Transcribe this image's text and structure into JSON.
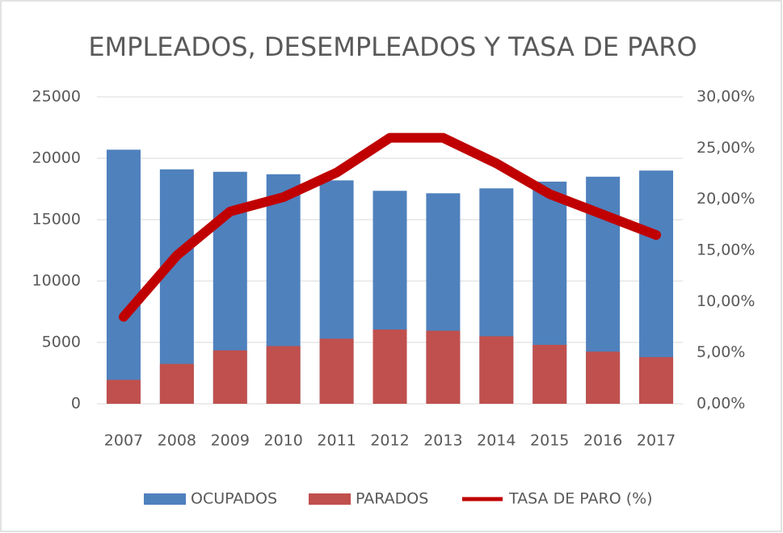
{
  "chart_data": {
    "type": "bar",
    "title": "EMPLEADOS, DESEMPLEADOS Y TASA DE PARO",
    "categories": [
      "2007",
      "2008",
      "2009",
      "2010",
      "2011",
      "2012",
      "2013",
      "2014",
      "2015",
      "2016",
      "2017"
    ],
    "series": [
      {
        "name": "OCUPADOS",
        "type": "bar",
        "color": "#4f81bd",
        "values": [
          20700,
          19100,
          18900,
          18700,
          18200,
          17350,
          17150,
          17550,
          18100,
          18500,
          19000
        ]
      },
      {
        "name": "PARADOS",
        "type": "bar",
        "color": "#c0504d",
        "values": [
          1950,
          3250,
          4350,
          4700,
          5300,
          6050,
          5950,
          5500,
          4800,
          4250,
          3800
        ]
      },
      {
        "name": "TASA DE PARO (%)",
        "type": "line",
        "axis": "y2",
        "color": "#c00000",
        "values": [
          8.5,
          14.5,
          18.8,
          20.2,
          22.6,
          26,
          26,
          23.5,
          20.5,
          18.5,
          16.5
        ]
      }
    ],
    "ylim": [
      0,
      25000
    ],
    "yticks": [
      0,
      5000,
      10000,
      15000,
      20000,
      25000
    ],
    "y2lim": [
      0,
      30
    ],
    "y2ticks": [
      {
        "value": 0,
        "label": "0,00%"
      },
      {
        "value": 5,
        "label": "5,00%"
      },
      {
        "value": 10,
        "label": "10,00%"
      },
      {
        "value": 15,
        "label": "15,00%"
      },
      {
        "value": 20,
        "label": "20,00%"
      },
      {
        "value": 25,
        "label": "25,00%"
      },
      {
        "value": 30,
        "label": "30,00%"
      }
    ],
    "grid": true,
    "legend": "bottom"
  }
}
